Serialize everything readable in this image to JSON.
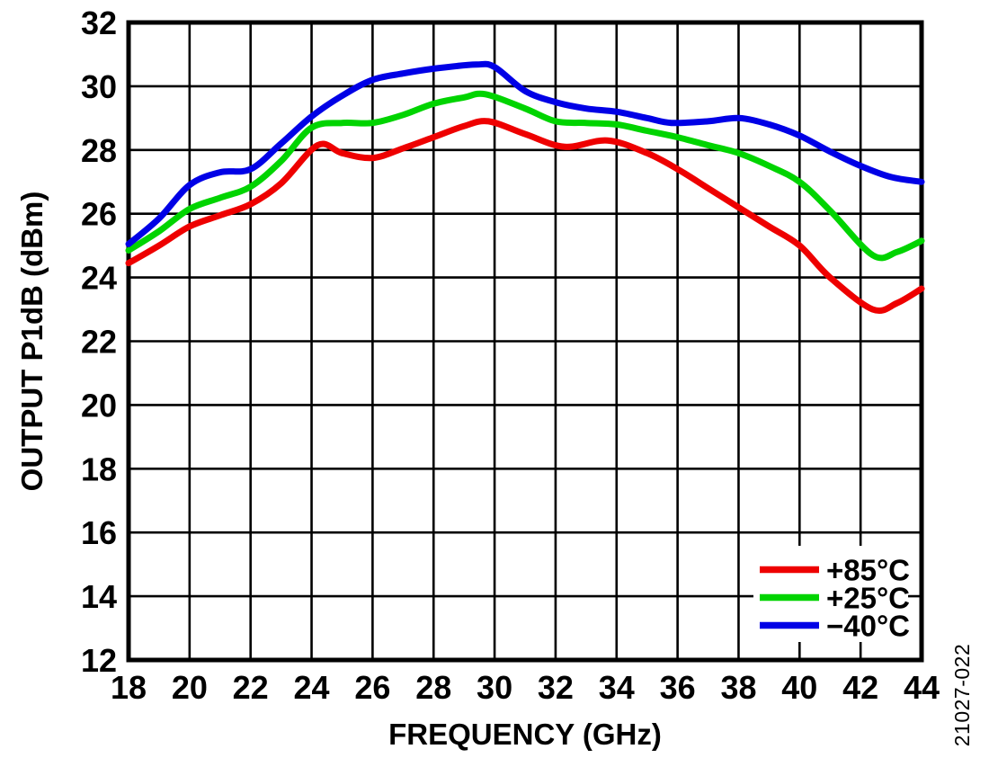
{
  "figure": {
    "code": "21027-022",
    "background": "#ffffff",
    "frame_color": "#000000",
    "grid_color": "#000000"
  },
  "chart_data": {
    "type": "line",
    "title": "",
    "xlabel": "FREQUENCY (GHz)",
    "ylabel": "OUTPUT P1dB (dBm)",
    "xlim": [
      18,
      44
    ],
    "ylim": [
      12,
      32
    ],
    "xticks": [
      18,
      20,
      22,
      24,
      26,
      28,
      30,
      32,
      34,
      36,
      38,
      40,
      42,
      44
    ],
    "yticks": [
      32,
      30,
      28,
      26,
      24,
      22,
      20,
      18,
      16,
      14,
      12
    ],
    "grid": true,
    "legend_position": "lower-right",
    "series": [
      {
        "name": "+85°C",
        "key": "plus85c",
        "color": "#ee0000",
        "x": [
          18,
          19,
          20,
          21,
          22,
          23,
          24.2,
          25,
          26,
          27,
          28,
          29,
          29.8,
          31,
          32.3,
          33.7,
          35,
          36,
          37,
          38,
          39,
          40,
          41,
          42.4,
          43.2,
          44
        ],
        "y": [
          24.45,
          25.0,
          25.6,
          25.95,
          26.3,
          26.95,
          28.15,
          27.9,
          27.75,
          28.05,
          28.4,
          28.75,
          28.9,
          28.5,
          28.1,
          28.3,
          27.9,
          27.4,
          26.8,
          26.2,
          25.6,
          25.0,
          24.0,
          23.0,
          23.2,
          23.65
        ]
      },
      {
        "name": "+25°C",
        "key": "plus25c",
        "color": "#00d400",
        "x": [
          18,
          19,
          20,
          21,
          22,
          23,
          24,
          25,
          26,
          27,
          28,
          29,
          29.7,
          31,
          32,
          33,
          34,
          35,
          36,
          37,
          38,
          39,
          40,
          41,
          42.4,
          43.2,
          44
        ],
        "y": [
          24.85,
          25.45,
          26.15,
          26.5,
          26.85,
          27.65,
          28.7,
          28.85,
          28.85,
          29.1,
          29.45,
          29.65,
          29.75,
          29.3,
          28.9,
          28.85,
          28.8,
          28.6,
          28.4,
          28.15,
          27.9,
          27.5,
          27.0,
          26.1,
          24.7,
          24.8,
          25.15
        ]
      },
      {
        "name": "−40°C",
        "key": "minus40c",
        "color": "#0000e6",
        "x": [
          18,
          19,
          20,
          21,
          22,
          23,
          24,
          25,
          26,
          27,
          28,
          29.4,
          30,
          31,
          32,
          33,
          34,
          35,
          35.8,
          37,
          38,
          39,
          40,
          41,
          42,
          43,
          44
        ],
        "y": [
          25.05,
          25.85,
          26.9,
          27.3,
          27.4,
          28.2,
          29.05,
          29.7,
          30.2,
          30.4,
          30.55,
          30.68,
          30.6,
          29.85,
          29.5,
          29.3,
          29.2,
          29.0,
          28.85,
          28.9,
          29.0,
          28.8,
          28.45,
          27.95,
          27.5,
          27.15,
          27.0
        ]
      }
    ]
  }
}
